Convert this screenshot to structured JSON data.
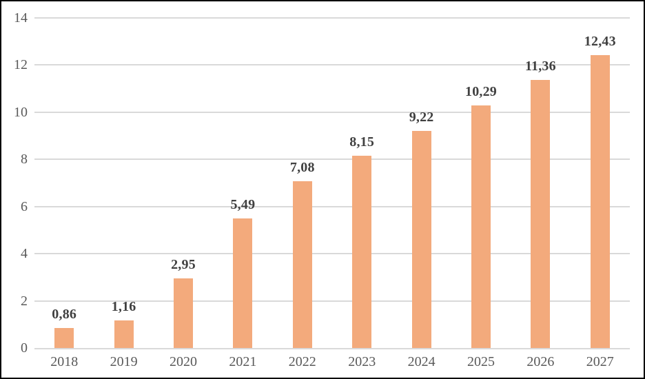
{
  "chart_data": {
    "type": "bar",
    "categories": [
      "2018",
      "2019",
      "2020",
      "2021",
      "2022",
      "2023",
      "2024",
      "2025",
      "2026",
      "2027"
    ],
    "values": [
      0.86,
      1.16,
      2.95,
      5.49,
      7.08,
      8.15,
      9.22,
      10.29,
      11.36,
      12.43
    ],
    "value_labels": [
      "0,86",
      "1,16",
      "2,95",
      "5,49",
      "7,08",
      "8,15",
      "9,22",
      "10,29",
      "11,36",
      "12,43"
    ],
    "title": "",
    "xlabel": "",
    "ylabel": "",
    "ylim": [
      0,
      14
    ],
    "yticks": [
      0,
      2,
      4,
      6,
      8,
      10,
      12,
      14
    ],
    "grid": true,
    "legend": false,
    "colors": {
      "bar_fill": "#F3AA7C",
      "value_label_text": "#404040",
      "axis_tick_text": "#595959",
      "gridline": "#D9D9D9",
      "axis_line": "#D9D9D9",
      "frame_border": "#000000",
      "background": "#FFFFFF"
    }
  }
}
